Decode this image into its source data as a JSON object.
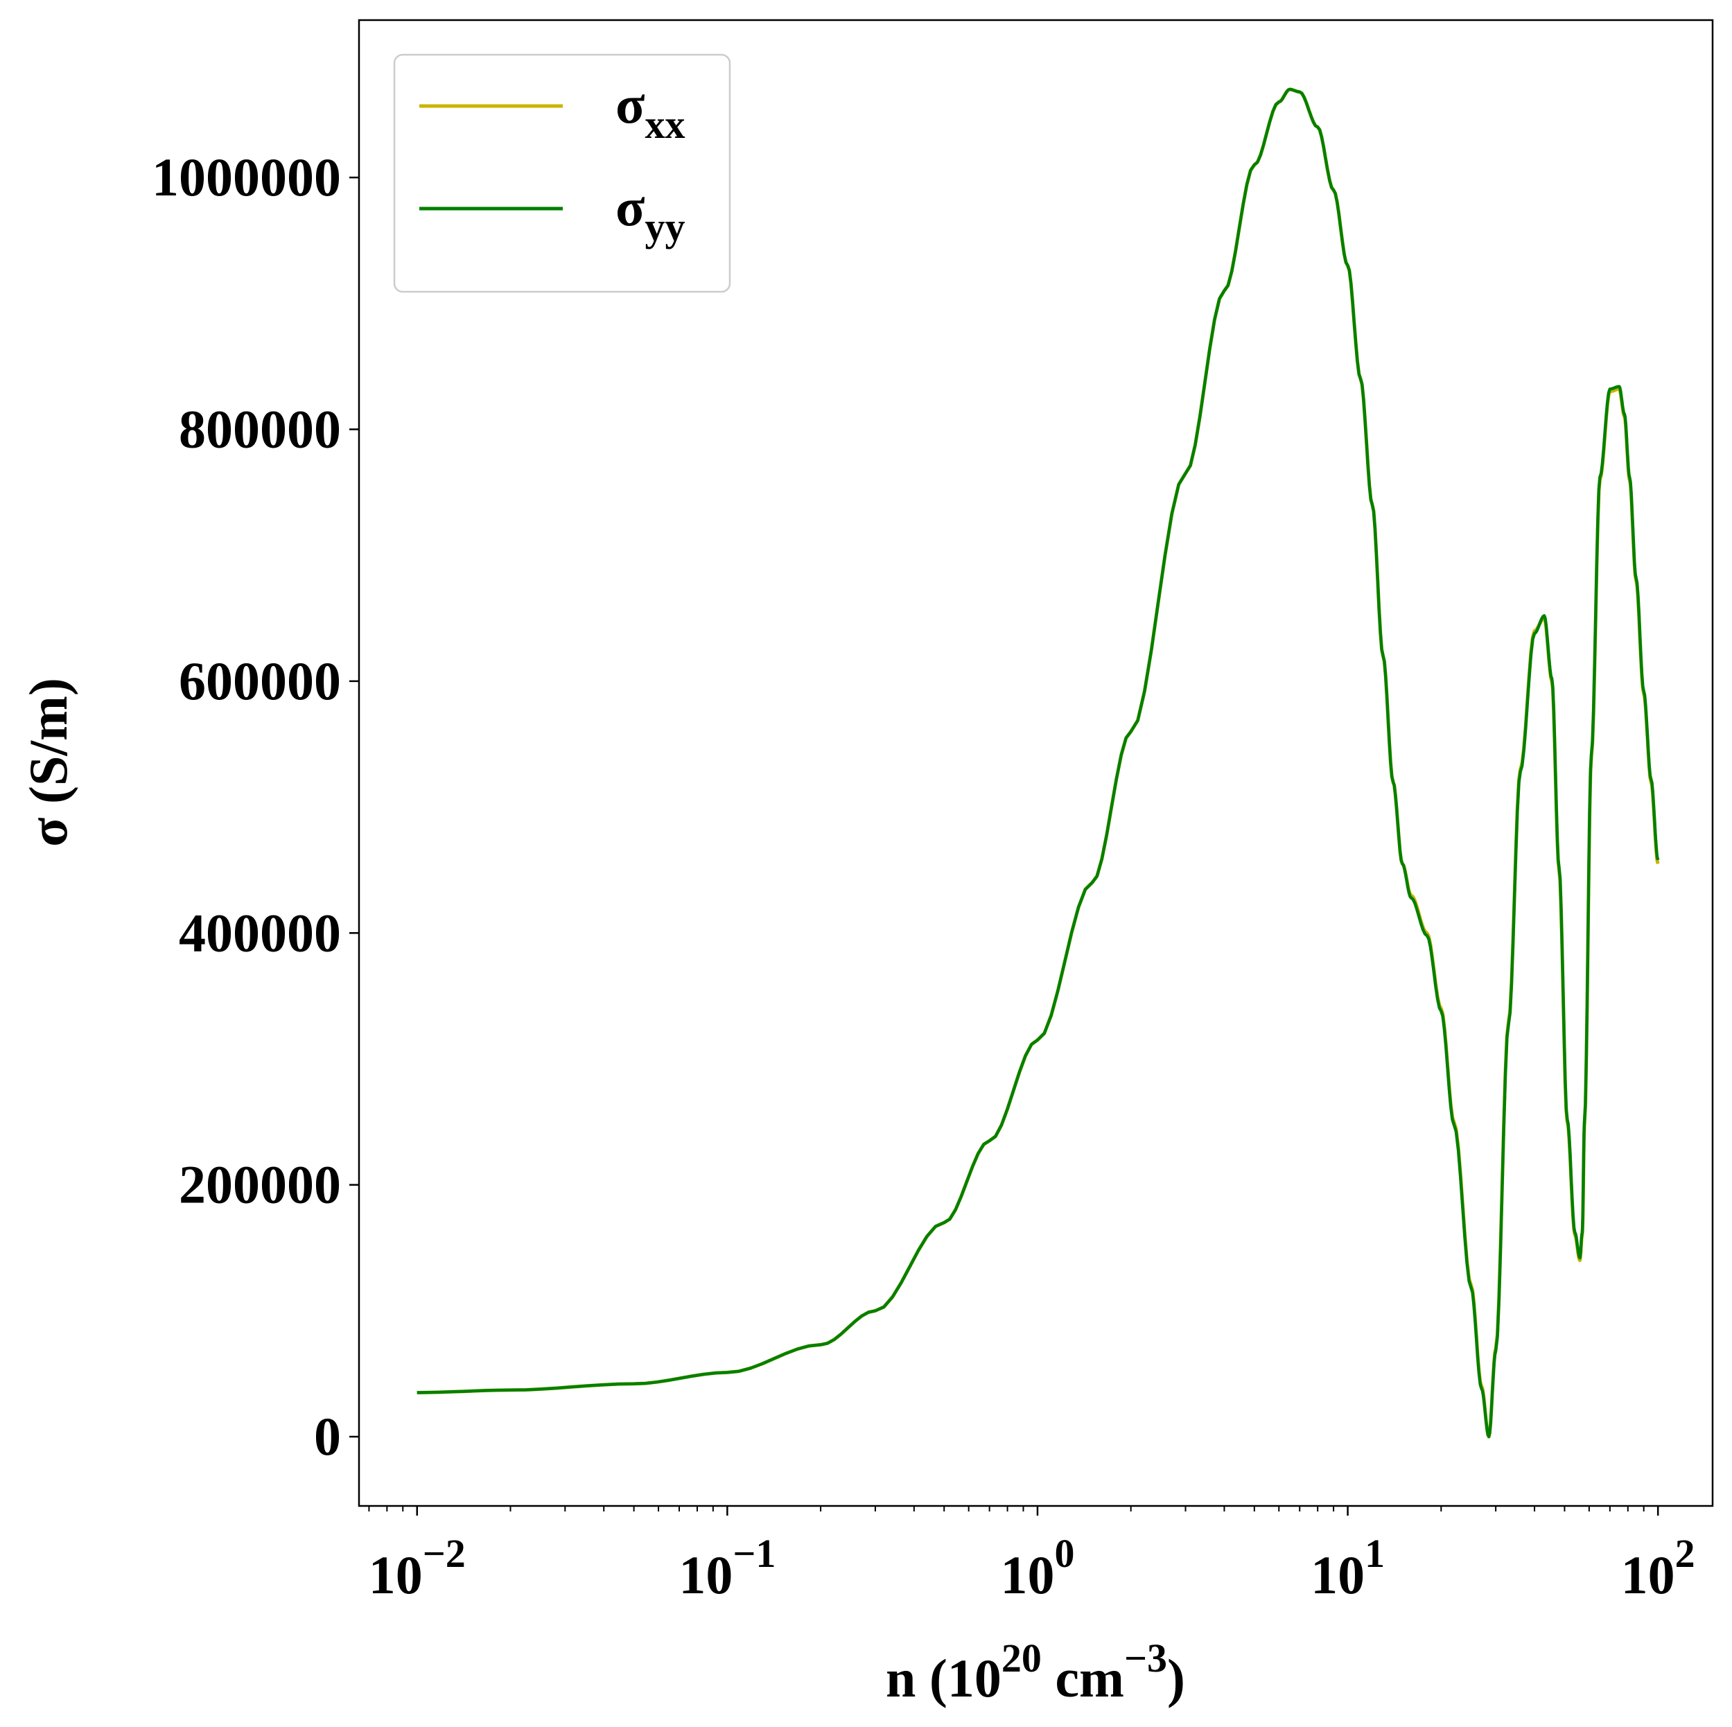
{
  "chart_data": {
    "type": "line",
    "xscale": "log",
    "xlim": [
      0.0065,
      150
    ],
    "ylim": [
      -55000,
      1125000
    ],
    "x_ticks": [
      {
        "value": 0.01,
        "base": "10",
        "exp": "−2"
      },
      {
        "value": 0.1,
        "base": "10",
        "exp": "−1"
      },
      {
        "value": 1,
        "base": "10",
        "exp": "0"
      },
      {
        "value": 10,
        "base": "10",
        "exp": "1"
      },
      {
        "value": 100,
        "base": "10",
        "exp": "2"
      }
    ],
    "y_ticks": [
      {
        "value": 0,
        "label": "0"
      },
      {
        "value": 200000,
        "label": "200000"
      },
      {
        "value": 400000,
        "label": "400000"
      },
      {
        "value": 600000,
        "label": "600000"
      },
      {
        "value": 800000,
        "label": "800000"
      },
      {
        "value": 1000000,
        "label": "1000000"
      }
    ],
    "xlabel": {
      "main": "n (10",
      "sup1": "20",
      "mid": " cm",
      "sup2": "−3",
      "end": ")"
    },
    "ylabel": "σ (S/m)",
    "grid": false,
    "legend_position": "top-left",
    "series": [
      {
        "name": "σ",
        "subscript": "xx",
        "color": "#c8b400",
        "x": [
          0.01,
          0.02,
          0.05,
          0.1,
          0.2,
          0.3,
          0.5,
          0.7,
          1.0,
          1.5,
          2.0,
          3.0,
          4.0,
          5.0,
          6.0,
          6.5,
          7.0,
          8.0,
          9.0,
          10.0,
          11.0,
          12.0,
          13.0,
          14.0,
          15.0,
          16.0,
          18.0,
          20.0,
          22.0,
          25.0,
          27.0,
          28.5,
          30.0,
          33.0,
          36.0,
          40.0,
          43.0,
          45.5,
          48.0,
          51.0,
          54.0,
          56.0,
          57.0,
          58.0,
          61.0,
          65.0,
          70.0,
          75.0,
          78.0,
          81.0,
          85.0,
          90.0,
          95.0,
          100.0
        ],
        "y": [
          35000,
          37000,
          42000,
          51000,
          73000,
          100000,
          170000,
          235000,
          315000,
          440000,
          560000,
          765000,
          910000,
          1010000,
          1060000,
          1070000,
          1068000,
          1040000,
          990000,
          930000,
          840000,
          740000,
          620000,
          520000,
          455000,
          430000,
          400000,
          340000,
          250000,
          120000,
          40000,
          0,
          70000,
          330000,
          530000,
          640000,
          650000,
          600000,
          450000,
          250000,
          160000,
          140000,
          160000,
          250000,
          540000,
          760000,
          830000,
          832000,
          810000,
          760000,
          680000,
          590000,
          520000,
          455000
        ]
      },
      {
        "name": "σ",
        "subscript": "yy",
        "color": "#008000",
        "x": [
          0.01,
          0.02,
          0.05,
          0.1,
          0.2,
          0.3,
          0.5,
          0.7,
          1.0,
          1.5,
          2.0,
          3.0,
          4.0,
          5.0,
          6.0,
          6.5,
          7.0,
          8.0,
          9.0,
          10.0,
          11.0,
          12.0,
          13.0,
          14.0,
          15.0,
          16.0,
          18.0,
          20.0,
          22.0,
          25.0,
          27.0,
          28.5,
          30.0,
          33.0,
          36.0,
          40.0,
          43.0,
          45.5,
          48.0,
          51.0,
          54.0,
          56.0,
          57.0,
          58.0,
          61.0,
          65.0,
          70.0,
          75.0,
          78.0,
          81.0,
          85.0,
          90.0,
          95.0,
          100.0
        ],
        "y": [
          35000,
          37000,
          42000,
          51000,
          73000,
          100000,
          170000,
          235000,
          315000,
          440000,
          560000,
          765000,
          910000,
          1010000,
          1060000,
          1070000,
          1068000,
          1040000,
          990000,
          930000,
          840000,
          740000,
          620000,
          520000,
          455000,
          428000,
          398000,
          338000,
          248000,
          118000,
          38000,
          0,
          68000,
          328000,
          528000,
          638000,
          652000,
          602000,
          452000,
          252000,
          162000,
          142000,
          162000,
          252000,
          542000,
          762000,
          832000,
          834000,
          812000,
          762000,
          682000,
          592000,
          522000,
          458000
        ]
      }
    ]
  }
}
